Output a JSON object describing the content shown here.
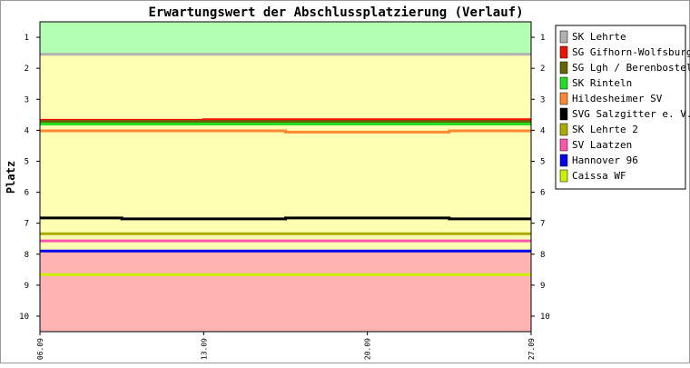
{
  "chart_data": {
    "type": "line",
    "title": "Erwartungswert der Abschlussplatzierung (Verlauf)",
    "xlabel": "",
    "ylabel": "Platz",
    "x": [
      "06.09",
      "13.09",
      "20.09",
      "27.09"
    ],
    "x_index": [
      0,
      1,
      2,
      3
    ],
    "ylim": [
      1,
      10
    ],
    "y_inverted": true,
    "y_ticks": [
      1,
      2,
      3,
      4,
      5,
      6,
      7,
      8,
      9,
      10
    ],
    "bands": [
      {
        "from": 0.5,
        "to": 1.55,
        "color": "#b3ffb3"
      },
      {
        "from": 1.55,
        "to": 7.9,
        "color": "#ffffb3"
      },
      {
        "from": 7.9,
        "to": 10.5,
        "color": "#ffb3b3"
      }
    ],
    "legend_position": "right",
    "series": [
      {
        "name": "SK Lehrte",
        "color": "#b0b0b0",
        "points": [
          [
            0,
            1.55
          ],
          [
            3,
            1.55
          ]
        ]
      },
      {
        "name": "SG Gifhorn-Wolfsburg",
        "color": "#ee1100",
        "points": [
          [
            0,
            3.68
          ],
          [
            1,
            3.68
          ],
          [
            1,
            3.66
          ],
          [
            3,
            3.66
          ]
        ]
      },
      {
        "name": "SG Lgh / Berenbostel",
        "color": "#666600",
        "points": [
          [
            0,
            3.72
          ],
          [
            3,
            3.72
          ]
        ]
      },
      {
        "name": "SK Rinteln",
        "color": "#22dd22",
        "points": [
          [
            0,
            3.8
          ],
          [
            3,
            3.8
          ]
        ]
      },
      {
        "name": "Hildesheimer SV",
        "color": "#ff8833",
        "points": [
          [
            0,
            4.02
          ],
          [
            1.5,
            4.02
          ],
          [
            1.5,
            4.06
          ],
          [
            2.5,
            4.06
          ],
          [
            2.5,
            4.02
          ],
          [
            3,
            4.02
          ]
        ]
      },
      {
        "name": "SVG Salzgitter e. V.",
        "color": "#000000",
        "points": [
          [
            0,
            6.83
          ],
          [
            0.5,
            6.83
          ],
          [
            0.5,
            6.86
          ],
          [
            1.5,
            6.86
          ],
          [
            1.5,
            6.83
          ],
          [
            2.5,
            6.83
          ],
          [
            2.5,
            6.86
          ],
          [
            3,
            6.86
          ]
        ]
      },
      {
        "name": "SK Lehrte 2",
        "color": "#aaaa00",
        "points": [
          [
            0,
            7.34
          ],
          [
            3,
            7.34
          ]
        ]
      },
      {
        "name": "SV Laatzen",
        "color": "#ff55aa",
        "points": [
          [
            0,
            7.57
          ],
          [
            3,
            7.57
          ]
        ]
      },
      {
        "name": "Hannover 96",
        "color": "#0000ee",
        "points": [
          [
            0,
            7.9
          ],
          [
            3,
            7.9
          ]
        ]
      },
      {
        "name": "Caissa WF",
        "color": "#ccee00",
        "points": [
          [
            0,
            8.66
          ],
          [
            3,
            8.66
          ]
        ]
      }
    ]
  }
}
